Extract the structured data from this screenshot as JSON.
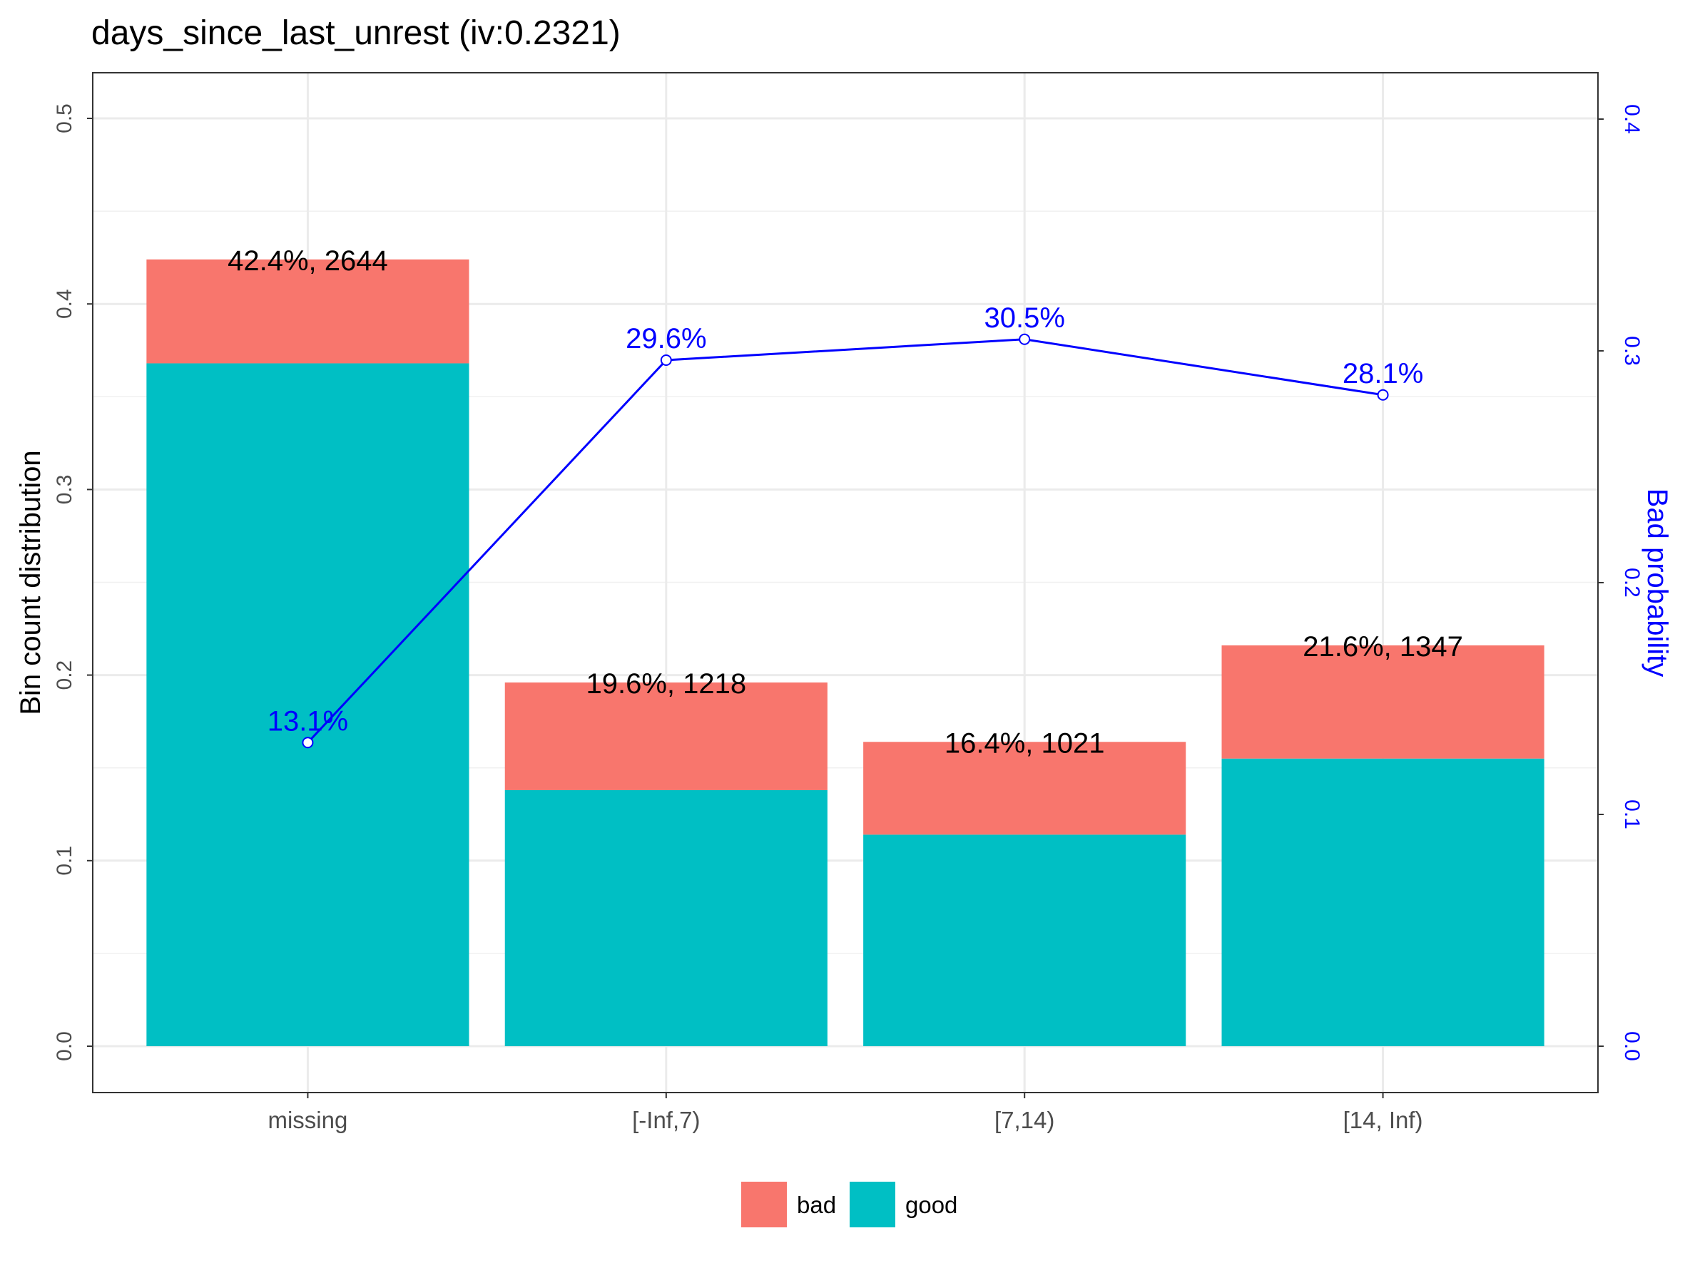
{
  "chart_data": {
    "type": "bar",
    "title": "days_since_last_unrest  (iv:0.2321)",
    "xlabel": "",
    "ylabel": "Bin count distribution",
    "y2label": "Bad probability",
    "categories": [
      "missing",
      "[-Inf,7)",
      "[7,14)",
      "[14, Inf)"
    ],
    "stacked": true,
    "series": [
      {
        "name": "good",
        "color": "#00BFC4",
        "values": [
          0.368,
          0.138,
          0.114,
          0.155
        ]
      },
      {
        "name": "bad",
        "color": "#F8766D",
        "values": [
          0.056,
          0.058,
          0.05,
          0.061
        ]
      }
    ],
    "bar_labels": [
      "42.4%, 2644",
      "19.6%, 1218",
      "16.4%, 1021",
      "21.6%, 1347"
    ],
    "bad_probability": {
      "name": "Bad probability",
      "color": "#0000FF",
      "values": [
        0.131,
        0.296,
        0.305,
        0.281
      ],
      "labels": [
        "13.1%",
        "29.6%",
        "30.5%",
        "28.1%"
      ]
    },
    "ylim": [
      0,
      0.5
    ],
    "y2lim": [
      0,
      0.4
    ],
    "yticks": [
      "0.0",
      "0.1",
      "0.2",
      "0.3",
      "0.4",
      "0.5"
    ],
    "y2ticks": [
      "0.0",
      "0.1",
      "0.2",
      "0.3",
      "0.4"
    ],
    "grid": true,
    "legend_position": "bottom",
    "legend": [
      {
        "label": "bad",
        "color": "#F8766D"
      },
      {
        "label": "good",
        "color": "#00BFC4"
      }
    ]
  }
}
